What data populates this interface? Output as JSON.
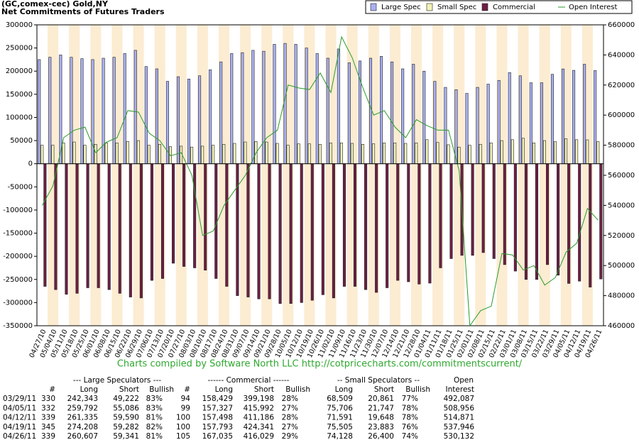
{
  "chart_data": {
    "type": "bar",
    "title": "(GC,comex-cec) Gold,NY",
    "subtitle": "Net Commitments of Futures Traders",
    "categories": [
      "04/27/10",
      "05/04/10",
      "05/11/10",
      "05/18/10",
      "05/25/10",
      "06/01/10",
      "06/08/10",
      "06/15/10",
      "06/22/10",
      "06/29/10",
      "07/06/10",
      "07/13/10",
      "07/20/10",
      "07/27/10",
      "08/03/10",
      "08/10/10",
      "08/17/10",
      "08/24/10",
      "08/31/10",
      "09/07/10",
      "09/14/10",
      "09/21/10",
      "09/28/10",
      "10/05/10",
      "10/12/10",
      "10/19/10",
      "10/26/10",
      "11/02/10",
      "11/09/10",
      "11/16/10",
      "11/23/10",
      "11/30/10",
      "12/07/10",
      "12/14/10",
      "12/21/10",
      "12/28/10",
      "01/04/11",
      "01/11/11",
      "01/18/11",
      "01/25/11",
      "02/01/11",
      "02/08/11",
      "02/15/11",
      "02/22/11",
      "03/01/11",
      "03/08/11",
      "03/15/11",
      "03/22/11",
      "03/29/11",
      "04/05/11",
      "04/12/11",
      "04/19/11",
      "04/26/11"
    ],
    "series": [
      {
        "name": "Large Spec",
        "color": "#aab0f0",
        "values": [
          225000,
          230000,
          235000,
          230000,
          227000,
          225000,
          228000,
          230000,
          238000,
          245000,
          210000,
          205000,
          178000,
          188000,
          183000,
          190000,
          203000,
          220000,
          238000,
          240000,
          245000,
          243000,
          258000,
          260000,
          258000,
          250000,
          238000,
          228000,
          248000,
          218000,
          222000,
          228000,
          232000,
          220000,
          205000,
          215000,
          200000,
          178000,
          165000,
          160000,
          152000,
          165000,
          172000,
          180000,
          197000,
          190000,
          175000,
          175000,
          193121,
          204706,
          201745,
          214926,
          201266
        ]
      },
      {
        "name": "Small Spec",
        "color": "#f2f2b8",
        "values": [
          40000,
          40000,
          45000,
          47000,
          40000,
          42000,
          45000,
          45000,
          48000,
          50000,
          40000,
          42000,
          37000,
          38000,
          36000,
          38000,
          40000,
          42000,
          44000,
          47000,
          48000,
          47000,
          44000,
          40000,
          43000,
          43000,
          42000,
          45000,
          45000,
          44000,
          42000,
          43000,
          45000,
          45000,
          44000,
          45000,
          52000,
          46000,
          41000,
          36000,
          40000,
          42000,
          45000,
          50000,
          52000,
          55000,
          45000,
          50000,
          47648,
          53959,
          51943,
          51622,
          47728
        ]
      },
      {
        "name": "Commercial",
        "color": "#6e1f44",
        "values": [
          -265000,
          -272000,
          -282000,
          -280000,
          -268000,
          -268000,
          -272000,
          -280000,
          -288000,
          -290000,
          -252000,
          -248000,
          -215000,
          -222000,
          -225000,
          -230000,
          -248000,
          -265000,
          -285000,
          -288000,
          -292000,
          -292000,
          -302000,
          -302000,
          -300000,
          -295000,
          -283000,
          -290000,
          -265000,
          -265000,
          -272000,
          -278000,
          -268000,
          -252000,
          -255000,
          -260000,
          -258000,
          -225000,
          -205000,
          -198000,
          -198000,
          -192000,
          -205000,
          -218000,
          -232000,
          -250000,
          -250000,
          -218000,
          -240769,
          -258665,
          -253688,
          -266548,
          -248994
        ]
      },
      {
        "name": "Open Interest",
        "color": "#2a9a2a",
        "axis": "y2",
        "values": [
          540000,
          553000,
          585000,
          590000,
          592000,
          575000,
          582000,
          585000,
          603000,
          602000,
          588000,
          583000,
          573000,
          575000,
          560000,
          520000,
          523000,
          540000,
          550000,
          560000,
          575000,
          585000,
          590000,
          620000,
          618000,
          617000,
          628000,
          615000,
          652000,
          638000,
          618000,
          600000,
          603000,
          592000,
          585000,
          597000,
          593000,
          590000,
          590000,
          563000,
          460000,
          470000,
          473000,
          508000,
          507000,
          497000,
          500000,
          487000,
          492087,
          508956,
          514871,
          537946,
          530132
        ]
      }
    ],
    "ylim": [
      -350000,
      300000
    ],
    "yticks": [
      -350000,
      -300000,
      -250000,
      -200000,
      -150000,
      -100000,
      -50000,
      0,
      50000,
      100000,
      150000,
      200000,
      250000,
      300000
    ],
    "y2lim": [
      460000,
      660000
    ],
    "y2ticks": [
      460000,
      480000,
      500000,
      520000,
      540000,
      560000,
      580000,
      600000,
      620000,
      640000,
      660000
    ],
    "legend": "top-right"
  },
  "credit": "Charts compiled by Software North LLC  http://cotpricecharts.com/commitmentscurrent/",
  "table": {
    "header_groups": [
      "--- Large Speculators ---",
      "------ Commercial ------",
      "-- Small Speculators --",
      "Open"
    ],
    "columns": [
      "#",
      "Long",
      "Short",
      "Bullish",
      "#",
      "Long",
      "Short",
      "Bullish",
      "Long",
      "Short",
      "Bullish",
      "Interest"
    ],
    "rows": [
      [
        "03/29/11",
        "330",
        "242,343",
        "49,222",
        "83%",
        "94",
        "158,429",
        "399,198",
        "28%",
        "68,509",
        "20,861",
        "77%",
        "492,087"
      ],
      [
        "04/05/11",
        "332",
        "259,792",
        "55,086",
        "83%",
        "99",
        "157,327",
        "415,992",
        "27%",
        "75,706",
        "21,747",
        "78%",
        "508,956"
      ],
      [
        "04/12/11",
        "339",
        "261,335",
        "59,590",
        "81%",
        "100",
        "157,498",
        "411,186",
        "28%",
        "71,591",
        "19,648",
        "78%",
        "514,871"
      ],
      [
        "04/19/11",
        "345",
        "274,208",
        "59,282",
        "82%",
        "100",
        "157,793",
        "424,341",
        "27%",
        "75,505",
        "23,883",
        "76%",
        "537,946"
      ],
      [
        "04/26/11",
        "339",
        "260,607",
        "59,341",
        "81%",
        "105",
        "167,035",
        "416,029",
        "29%",
        "74,128",
        "26,400",
        "74%",
        "530,132"
      ]
    ]
  }
}
